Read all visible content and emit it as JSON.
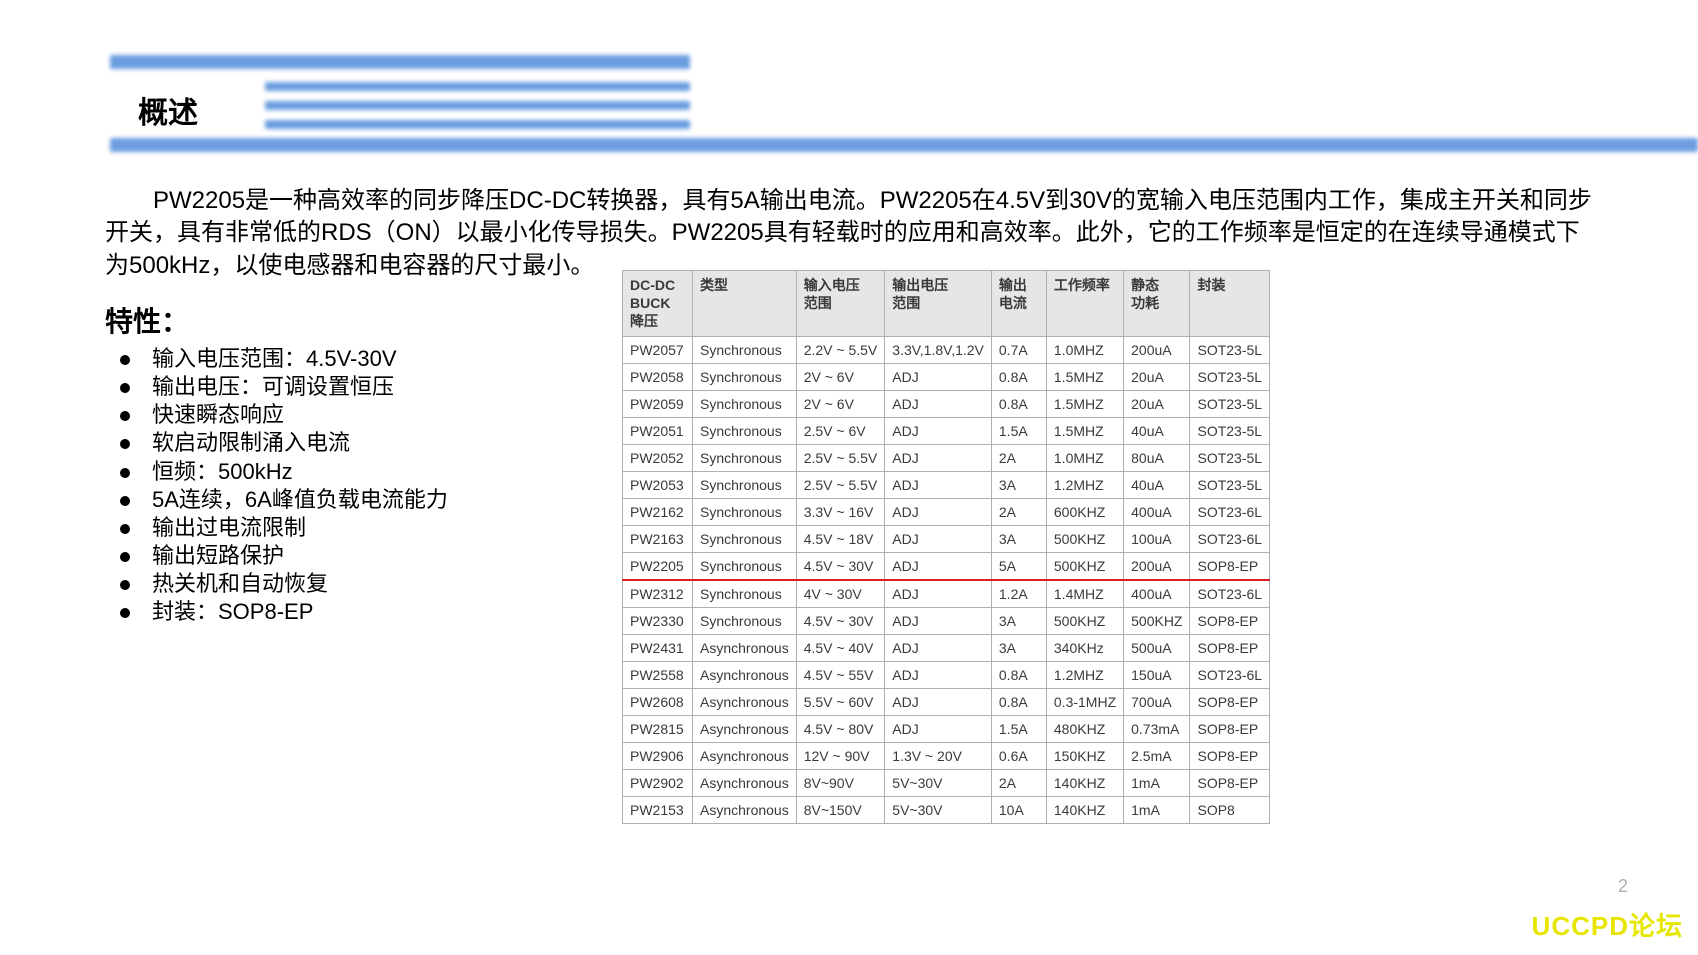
{
  "header": {
    "section_title": "概述"
  },
  "description": "PW2205是一种高效率的同步降压DC-DC转换器，具有5A输出电流。PW2205在4.5V到30V的宽输入电压范围内工作，集成主开关和同步开关，具有非常低的RDS（ON）以最小化传导损失。PW2205具有轻载时的应用和高效率。此外，它的工作频率是恒定的在连续导通模式下为500kHz，以使电感器和电容器的尺寸最小。",
  "features": {
    "title": "特性：",
    "items": [
      "输入电压范围：4.5V-30V",
      "输出电压：可调设置恒压",
      "快速瞬态响应",
      "软启动限制涌入电流",
      "恒频：500kHz",
      "5A连续，6A峰值负载电流能力",
      "输出过电流限制",
      "输出短路保护",
      "热关机和自动恢复",
      "封装：SOP8-EP"
    ]
  },
  "table": {
    "header_bg": "#e6e6e6",
    "border_color": "#b0b0b0",
    "highlight_color": "#d92020",
    "columns": [
      "DC-DC\nBUCK\n降压",
      "类型",
      "输入电压\n范围",
      "输出电压\n范围",
      "输出\n电流",
      "工作频率",
      "静态\n功耗",
      "封装"
    ],
    "highlighted_part": "PW2205",
    "rows": [
      [
        "PW2057",
        "Synchronous",
        "2.2V ~ 5.5V",
        "3.3V,1.8V,1.2V",
        "0.7A",
        "1.0MHZ",
        "200uA",
        "SOT23-5L"
      ],
      [
        "PW2058",
        "Synchronous",
        "2V ~ 6V",
        "ADJ",
        "0.8A",
        "1.5MHZ",
        "20uA",
        "SOT23-5L"
      ],
      [
        "PW2059",
        "Synchronous",
        "2V ~ 6V",
        "ADJ",
        "0.8A",
        "1.5MHZ",
        "20uA",
        "SOT23-5L"
      ],
      [
        "PW2051",
        "Synchronous",
        "2.5V ~ 6V",
        "ADJ",
        "1.5A",
        "1.5MHZ",
        "40uA",
        "SOT23-5L"
      ],
      [
        "PW2052",
        "Synchronous",
        "2.5V ~ 5.5V",
        "ADJ",
        "2A",
        "1.0MHZ",
        "80uA",
        "SOT23-5L"
      ],
      [
        "PW2053",
        "Synchronous",
        "2.5V ~ 5.5V",
        "ADJ",
        "3A",
        "1.2MHZ",
        "40uA",
        "SOT23-5L"
      ],
      [
        "PW2162",
        "Synchronous",
        "3.3V ~ 16V",
        "ADJ",
        "2A",
        "600KHZ",
        "400uA",
        "SOT23-6L"
      ],
      [
        "PW2163",
        "Synchronous",
        "4.5V ~ 18V",
        "ADJ",
        "3A",
        "500KHZ",
        "100uA",
        "SOT23-6L"
      ],
      [
        "PW2205",
        "Synchronous",
        "4.5V ~ 30V",
        "ADJ",
        "5A",
        "500KHZ",
        "200uA",
        "SOP8-EP"
      ],
      [
        "PW2312",
        "Synchronous",
        "4V ~ 30V",
        "ADJ",
        "1.2A",
        "1.4MHZ",
        "400uA",
        "SOT23-6L"
      ],
      [
        "PW2330",
        "Synchronous",
        "4.5V ~ 30V",
        "ADJ",
        "3A",
        "500KHZ",
        "500KHZ",
        "SOP8-EP"
      ],
      [
        "PW2431",
        "Asynchronous",
        "4.5V ~ 40V",
        "ADJ",
        "3A",
        "340KHz",
        "500uA",
        "SOP8-EP"
      ],
      [
        "PW2558",
        "Asynchronous",
        "4.5V ~ 55V",
        "ADJ",
        "0.8A",
        "1.2MHZ",
        "150uA",
        "SOT23-6L"
      ],
      [
        "PW2608",
        "Asynchronous",
        "5.5V ~ 60V",
        "ADJ",
        "0.8A",
        "0.3-1MHZ",
        "700uA",
        "SOP8-EP"
      ],
      [
        "PW2815",
        "Asynchronous",
        "4.5V ~ 80V",
        "ADJ",
        "1.5A",
        "480KHZ",
        "0.73mA",
        "SOP8-EP"
      ],
      [
        "PW2906",
        "Asynchronous",
        "12V ~ 90V",
        "1.3V ~ 20V",
        "0.6A",
        "150KHZ",
        "2.5mA",
        "SOP8-EP"
      ],
      [
        "PW2902",
        "Asynchronous",
        "8V~90V",
        "5V~30V",
        "2A",
        "140KHZ",
        "1mA",
        "SOP8-EP"
      ],
      [
        "PW2153",
        "Asynchronous",
        "8V~150V",
        "5V~30V",
        "10A",
        "140KHZ",
        "1mA",
        "SOP8"
      ]
    ]
  },
  "footer": {
    "page_num": "2",
    "watermark": "UCCPD论坛"
  }
}
